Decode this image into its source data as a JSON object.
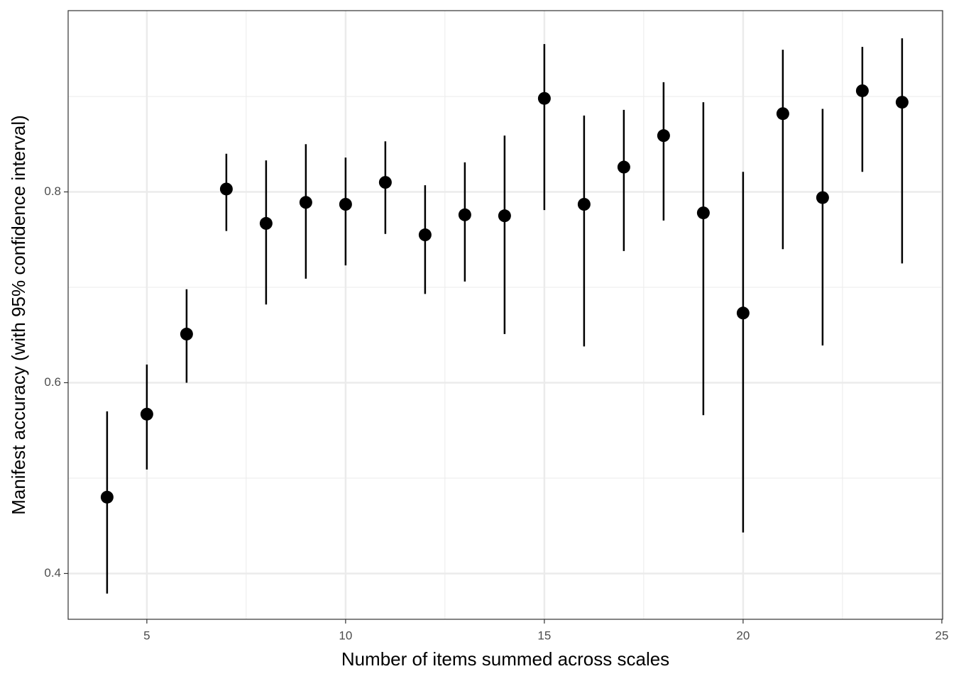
{
  "chart_data": {
    "type": "pointrange",
    "x_label": "Number of items summed across scales",
    "y_label": "Manifest accuracy (with 95% confidence interval)",
    "x": [
      4,
      5,
      6,
      7,
      8,
      9,
      10,
      11,
      12,
      13,
      14,
      15,
      16,
      17,
      18,
      19,
      20,
      21,
      22,
      23,
      24
    ],
    "values": [
      0.48,
      0.567,
      0.651,
      0.803,
      0.767,
      0.789,
      0.787,
      0.81,
      0.755,
      0.776,
      0.775,
      0.898,
      0.787,
      0.826,
      0.859,
      0.778,
      0.673,
      0.882,
      0.794,
      0.906,
      0.894
    ],
    "lower": [
      0.379,
      0.509,
      0.6,
      0.759,
      0.682,
      0.709,
      0.723,
      0.756,
      0.693,
      0.706,
      0.651,
      0.781,
      0.638,
      0.738,
      0.77,
      0.566,
      0.443,
      0.74,
      0.639,
      0.821,
      0.725
    ],
    "upper": [
      0.57,
      0.619,
      0.698,
      0.84,
      0.833,
      0.85,
      0.836,
      0.853,
      0.807,
      0.831,
      0.859,
      0.955,
      0.88,
      0.886,
      0.915,
      0.894,
      0.821,
      0.949,
      0.887,
      0.952,
      0.961
    ],
    "color": "#000000",
    "xlim": [
      3.02,
      25.02
    ],
    "xticks": [
      5,
      10,
      15,
      20,
      25
    ],
    "ylim": [
      0.352,
      0.99
    ],
    "yticks": [
      0.4,
      0.6,
      0.8
    ],
    "grid": true
  }
}
